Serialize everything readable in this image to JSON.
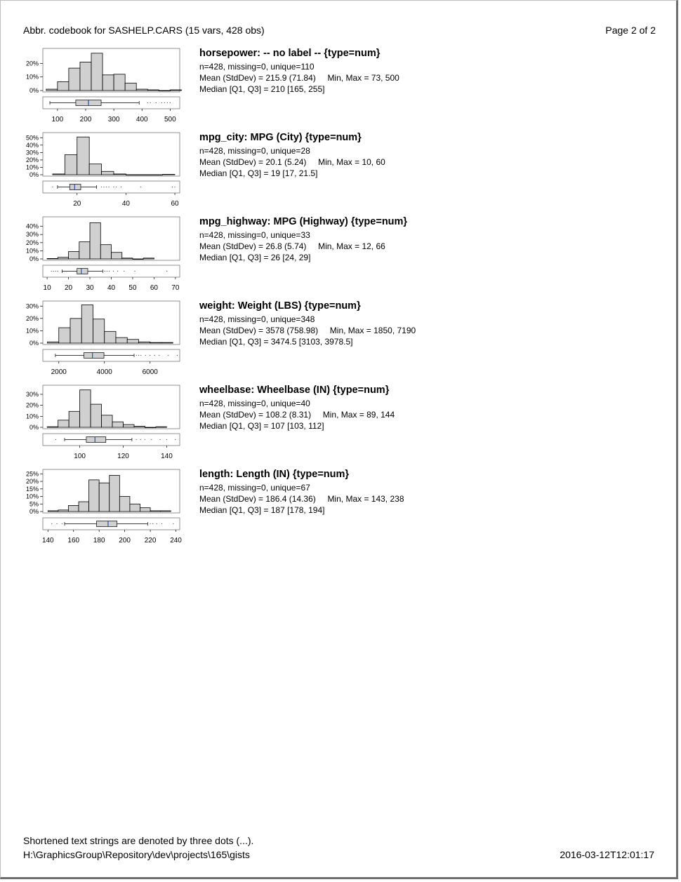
{
  "header": {
    "title": "Abbr. codebook for SASHELP.CARS (15 vars, 428 obs)",
    "page": "Page 2 of 2"
  },
  "footer": {
    "note": "Shortened text strings are denoted by three dots (...).",
    "path": "H:\\GraphicsGroup\\Repository\\dev\\projects\\165\\gists",
    "timestamp": "2016-03-12T12:01:17"
  },
  "chart_data": [
    {
      "type": "bar",
      "title": "horsepower:  -- no label --  {type=num}",
      "stats": {
        "counts": "n=428, missing=0, unique=110",
        "mean": "Mean (StdDev) = 215.9 (71.84)",
        "minmax": "Min, Max = 73, 500",
        "median": "Median [Q1, Q3] = 210 [165, 255]"
      },
      "hist": {
        "bin_start": 60,
        "bin_width": 40,
        "values": [
          1,
          6.5,
          16.5,
          21,
          27.5,
          11.5,
          12,
          5.5,
          1,
          0.5,
          0,
          0.5
        ],
        "ylim": [
          0,
          30
        ],
        "yticks": [
          0,
          10,
          20
        ],
        "ytick_labels": [
          "0%",
          "10%",
          "20%"
        ]
      },
      "box": {
        "whisker_low": 73,
        "q1": 165,
        "median": 210,
        "q3": 255,
        "whisker_high": 390,
        "outliers": [
          420,
          430,
          450,
          470,
          480,
          490,
          500
        ]
      },
      "x": {
        "xlim": [
          48,
          534
        ],
        "ticks": [
          100,
          200,
          300,
          400,
          500
        ],
        "tick_labels": [
          "100",
          "200",
          "300",
          "400",
          "500"
        ]
      }
    },
    {
      "type": "bar",
      "title": "mpg_city:  MPG (City)  {type=num}",
      "stats": {
        "counts": "n=428, missing=0, unique=28",
        "mean": "Mean (StdDev) = 20.1 (5.24)",
        "minmax": "Min, Max = 10, 60",
        "median": "Median [Q1, Q3] = 19 [17, 21.5]"
      },
      "hist": {
        "bin_start": 10,
        "bin_width": 5,
        "values": [
          1,
          27,
          51,
          14.5,
          4.5,
          1,
          0,
          0,
          0,
          0.5
        ],
        "ylim": [
          0,
          55
        ],
        "yticks": [
          0,
          10,
          20,
          30,
          40,
          50
        ],
        "ytick_labels": [
          "0%",
          "10%",
          "20%",
          "30%",
          "40%",
          "50%"
        ]
      },
      "box": {
        "whisker_low": 12,
        "q1": 17,
        "median": 19,
        "q3": 21.5,
        "whisker_high": 28,
        "outliers": [
          10,
          30,
          31,
          32,
          33,
          35,
          36,
          38,
          46,
          59,
          60
        ]
      },
      "x": {
        "xlim": [
          6,
          62
        ],
        "ticks": [
          20,
          40,
          60
        ],
        "tick_labels": [
          "20",
          "40",
          "60"
        ]
      }
    },
    {
      "type": "bar",
      "title": "mpg_highway:  MPG (Highway)  {type=num}",
      "stats": {
        "counts": "n=428, missing=0, unique=33",
        "mean": "Mean (StdDev) = 26.8 (5.74)",
        "minmax": "Min, Max = 12, 66",
        "median": "Median [Q1, Q3] = 26 [24, 29]"
      },
      "hist": {
        "bin_start": 10,
        "bin_width": 5,
        "values": [
          0.5,
          2,
          9,
          21,
          44.5,
          17.5,
          8,
          1,
          0,
          1
        ],
        "ylim": [
          0,
          50
        ],
        "yticks": [
          0,
          10,
          20,
          30,
          40
        ],
        "ytick_labels": [
          "0%",
          "10%",
          "20%",
          "30%",
          "40%"
        ]
      },
      "box": {
        "whisker_low": 17,
        "q1": 24,
        "median": 26,
        "q3": 29,
        "whisker_high": 36,
        "outliers": [
          12,
          13,
          14,
          15,
          37,
          38,
          39,
          41,
          43,
          46,
          51,
          66
        ]
      },
      "x": {
        "xlim": [
          8,
          72
        ],
        "ticks": [
          10,
          20,
          30,
          40,
          50,
          60,
          70
        ],
        "tick_labels": [
          "10",
          "20",
          "30",
          "40",
          "50",
          "60",
          "70"
        ]
      }
    },
    {
      "type": "bar",
      "title": "weight:  Weight (LBS)  {type=num}",
      "stats": {
        "counts": "n=428, missing=0, unique=348",
        "mean": "Mean (StdDev) = 3578 (758.98)",
        "minmax": "Min, Max = 1850, 7190",
        "median": "Median [Q1, Q3] = 3474.5 [3103, 3978.5]"
      },
      "hist": {
        "bin_start": 1500,
        "bin_width": 500,
        "values": [
          1,
          12.5,
          20,
          31,
          19.5,
          9.5,
          4.5,
          3,
          1,
          0.5,
          0.5
        ],
        "ylim": [
          0,
          33
        ],
        "yticks": [
          0,
          10,
          20,
          30
        ],
        "ytick_labels": [
          "0%",
          "10%",
          "20%",
          "30%"
        ]
      },
      "box": {
        "whisker_low": 1850,
        "q1": 3103,
        "median": 3474.5,
        "q3": 3978.5,
        "whisker_high": 5300,
        "outliers": [
          5400,
          5500,
          5600,
          5800,
          6000,
          6200,
          6400,
          6800,
          7190
        ]
      },
      "x": {
        "xlim": [
          1300,
          7300
        ],
        "ticks": [
          2000,
          4000,
          6000
        ],
        "tick_labels": [
          "2000",
          "4000",
          "6000"
        ]
      }
    },
    {
      "type": "bar",
      "title": "wheelbase:  Wheelbase (IN)  {type=num}",
      "stats": {
        "counts": "n=428, missing=0, unique=40",
        "mean": "Mean (StdDev) = 108.2 (8.31)",
        "minmax": "Min, Max = 89, 144",
        "median": "Median [Q1, Q3] = 107 [103, 112]"
      },
      "hist": {
        "bin_start": 85,
        "bin_width": 5,
        "values": [
          0.5,
          6.5,
          14.5,
          34,
          21,
          11,
          5,
          2.5,
          1,
          0,
          0.5
        ],
        "ylim": [
          0,
          37
        ],
        "yticks": [
          0,
          10,
          20,
          30
        ],
        "ytick_labels": [
          "0%",
          "10%",
          "20%",
          "30%"
        ]
      },
      "box": {
        "whisker_low": 93,
        "q1": 103,
        "median": 107,
        "q3": 112,
        "whisker_high": 124,
        "outliers": [
          89,
          126,
          128,
          130,
          133,
          137,
          140,
          144
        ]
      },
      "x": {
        "xlim": [
          83,
          146
        ],
        "ticks": [
          100,
          120,
          140
        ],
        "tick_labels": [
          "100",
          "120",
          "140"
        ]
      }
    },
    {
      "type": "bar",
      "title": "length:  Length (IN)  {type=num}",
      "stats": {
        "counts": "n=428, missing=0, unique=67",
        "mean": "Mean (StdDev) = 186.4 (14.36)",
        "minmax": "Min, Max = 143, 238",
        "median": "Median [Q1, Q3] = 187 [178, 194]"
      },
      "hist": {
        "bin_start": 140,
        "bin_width": 8,
        "values": [
          0.5,
          1,
          4,
          6.5,
          21,
          19,
          24,
          10,
          5,
          2.5,
          0.5,
          0.5
        ],
        "ylim": [
          0,
          27
        ],
        "yticks": [
          0,
          5,
          10,
          15,
          20,
          25
        ],
        "ytick_labels": [
          "0%",
          "5%",
          "10%",
          "15%",
          "20%",
          "25%"
        ]
      },
      "box": {
        "whisker_low": 153,
        "q1": 178,
        "median": 187,
        "q3": 194,
        "whisker_high": 218,
        "outliers": [
          143,
          147,
          151,
          220,
          222,
          225,
          229,
          238
        ]
      },
      "x": {
        "xlim": [
          136,
          243
        ],
        "ticks": [
          140,
          160,
          180,
          200,
          220,
          240
        ],
        "tick_labels": [
          "140",
          "160",
          "180",
          "200",
          "220",
          "240"
        ]
      }
    }
  ]
}
